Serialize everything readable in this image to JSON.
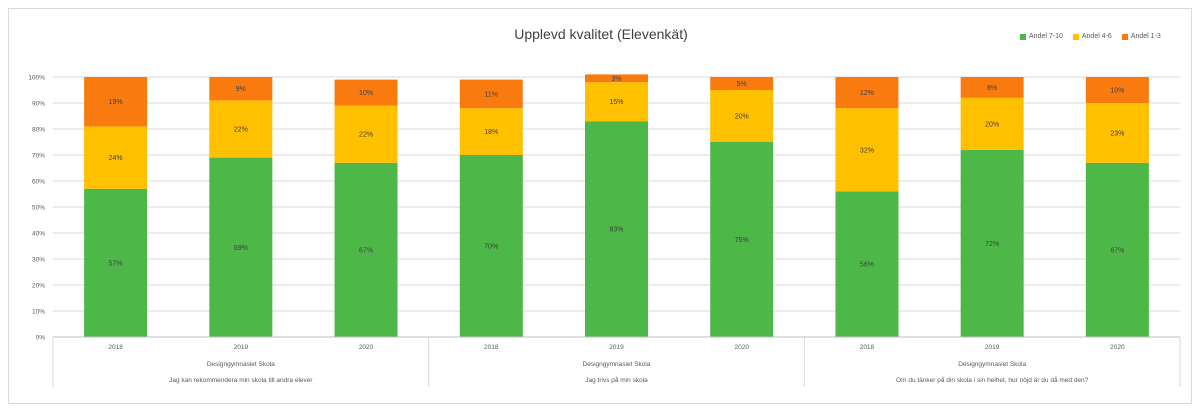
{
  "chart_data": {
    "type": "bar",
    "stacked": true,
    "title": "Upplevd kvalitet (Elevenkät)",
    "ylim": [
      0,
      100
    ],
    "yticks": [
      "0%",
      "10%",
      "20%",
      "30%",
      "40%",
      "50%",
      "60%",
      "70%",
      "80%",
      "90%",
      "100%"
    ],
    "grid": true,
    "legend_position": "top-right",
    "categories": [
      {
        "year": "2018",
        "school": "Designgymnasiet Skola",
        "question": "Jag kan rekommendera min skola till andra elever"
      },
      {
        "year": "2019",
        "school": "Designgymnasiet Skola",
        "question": "Jag kan rekommendera min skola till andra elever"
      },
      {
        "year": "2020",
        "school": "Designgymnasiet Skola",
        "question": "Jag kan rekommendera min skola till andra elever"
      },
      {
        "year": "2018",
        "school": "Designgymnasiet Skola",
        "question": "Jag trivs på min skola"
      },
      {
        "year": "2019",
        "school": "Designgymnasiet Skola",
        "question": "Jag trivs på min skola"
      },
      {
        "year": "2020",
        "school": "Designgymnasiet Skola",
        "question": "Jag trivs på min skola"
      },
      {
        "year": "2018",
        "school": "Designgymnasiet Skola",
        "question": "Om du tänker på din skola i sin helhet, hur nöjd är du då med den?"
      },
      {
        "year": "2019",
        "school": "Designgymnasiet Skola",
        "question": "Om du tänker på din skola i sin helhet, hur nöjd är du då med den?"
      },
      {
        "year": "2020",
        "school": "Designgymnasiet Skola",
        "question": "Om du tänker på din skola i sin helhet, hur nöjd är du då med den?"
      }
    ],
    "groups": [
      {
        "school": "Designgymnasiet Skola",
        "question": "Jag kan rekommendera min skola till andra elever"
      },
      {
        "school": "Designgymnasiet Skola",
        "question": "Jag trivs på min skola"
      },
      {
        "school": "Designgymnasiet Skola",
        "question": "Om du tänker på din skola i sin helhet, hur nöjd är du då med den?"
      }
    ],
    "series": [
      {
        "name": "Andel 7-10",
        "color": "#4db848",
        "values": [
          57,
          69,
          67,
          70,
          83,
          75,
          56,
          72,
          67
        ],
        "labels": [
          "57%",
          "69%",
          "67%",
          "70%",
          "83%",
          "75%",
          "56%",
          "72%",
          "67%"
        ]
      },
      {
        "name": "Andel 4-6",
        "color": "#ffc000",
        "values": [
          24,
          22,
          22,
          18,
          15,
          20,
          32,
          20,
          23
        ],
        "labels": [
          "24%",
          "22%",
          "22%",
          "18%",
          "15%",
          "20%",
          "32%",
          "20%",
          "23%"
        ]
      },
      {
        "name": "Andel 1-3",
        "color": "#f97b0f",
        "values": [
          19,
          9,
          10,
          11,
          3,
          5,
          12,
          8,
          10
        ],
        "labels": [
          "19%",
          "9%",
          "10%",
          "11%",
          "3%",
          "5%",
          "12%",
          "8%",
          "10%"
        ]
      }
    ]
  }
}
